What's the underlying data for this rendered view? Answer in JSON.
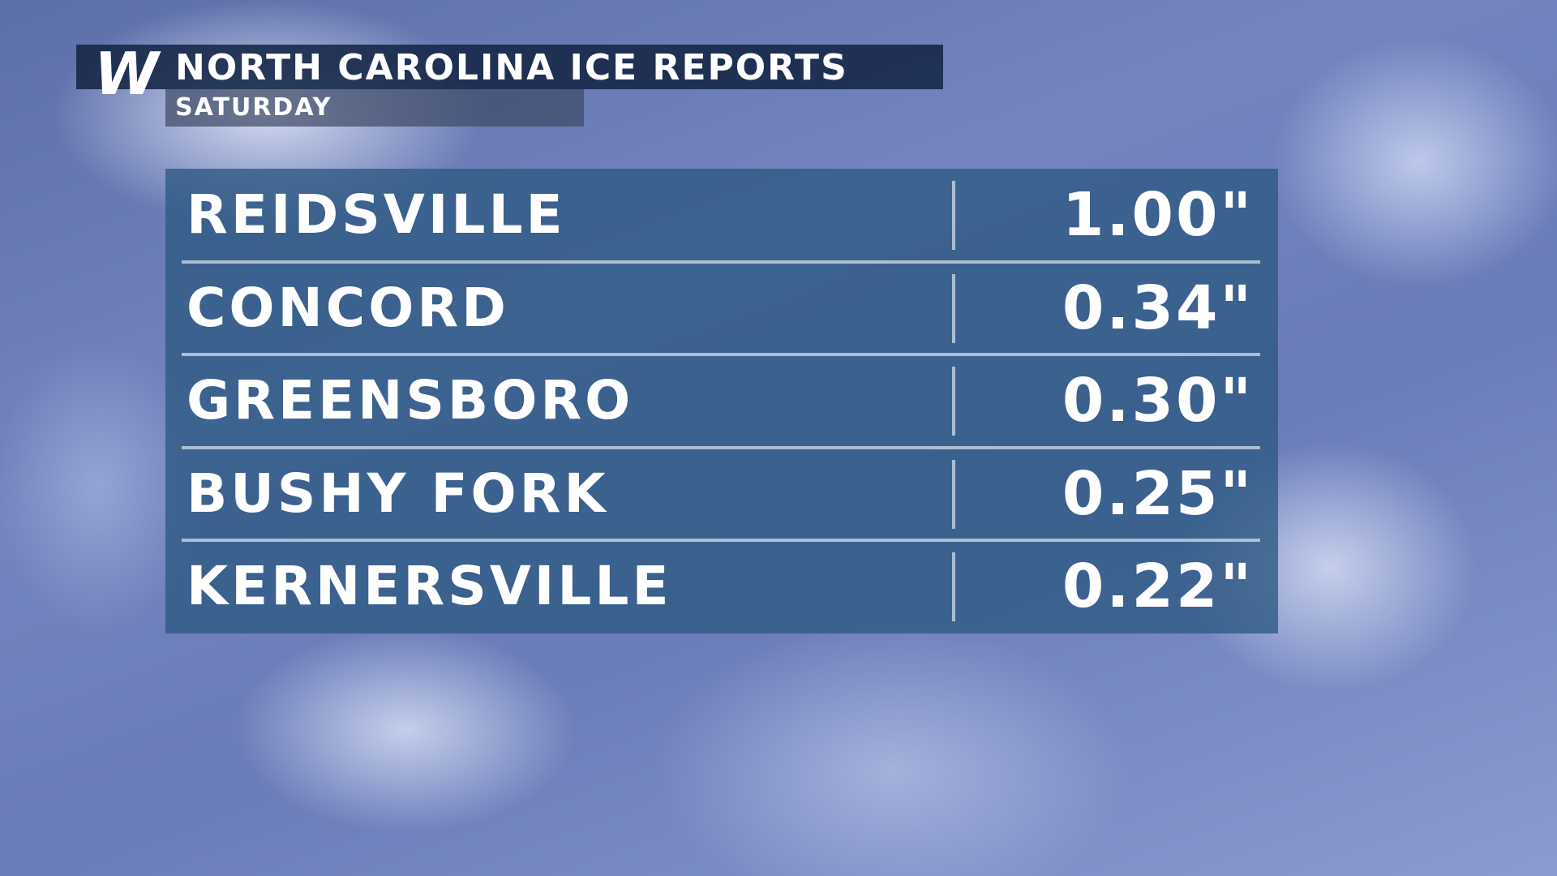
{
  "header": {
    "logo": "W",
    "title": "NORTH CAROLINA ICE REPORTS",
    "subtitle": "SATURDAY"
  },
  "table": {
    "rows": [
      [
        "REIDSVILLE",
        "1.00\""
      ],
      [
        "CONCORD",
        "0.34\""
      ],
      [
        "GREENSBORO",
        "0.30\""
      ],
      [
        "BUSHY FORK",
        "0.25\""
      ],
      [
        "KERNERSVILLE",
        "0.22\""
      ]
    ]
  }
}
